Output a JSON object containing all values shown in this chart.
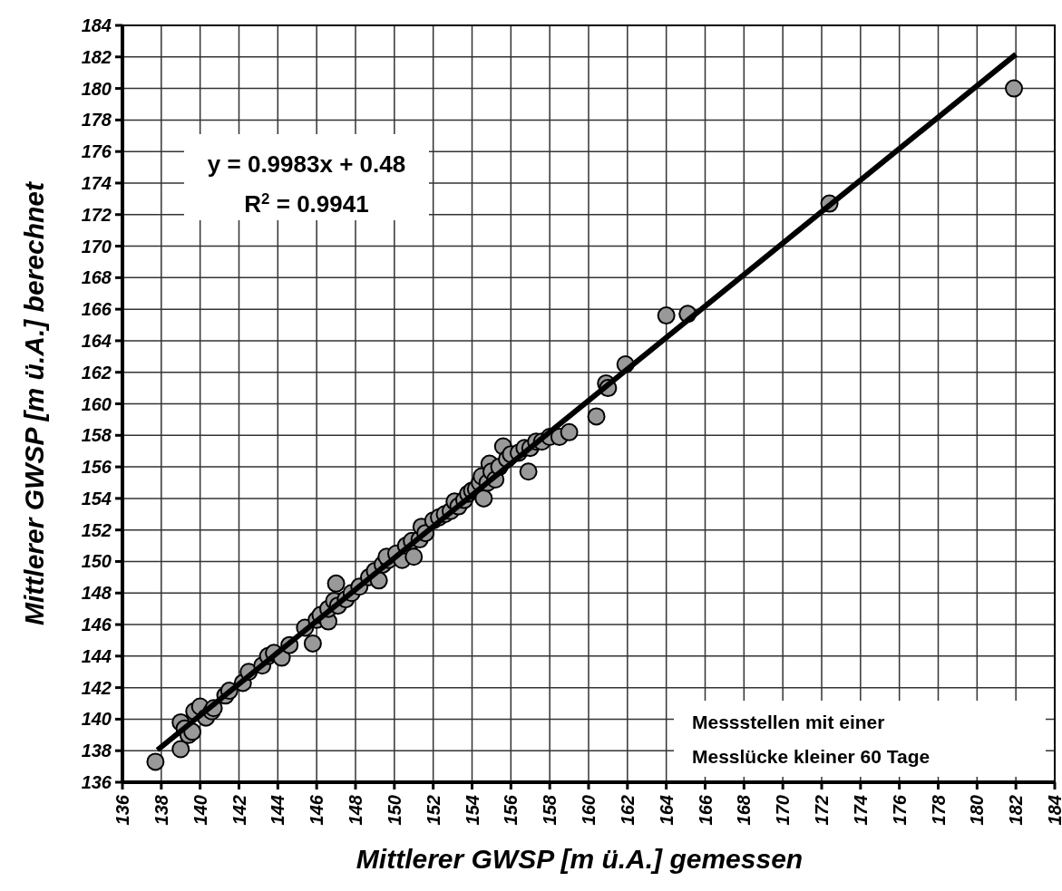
{
  "chart_data": {
    "type": "scatter",
    "xlabel": "Mittlerer GWSP [m ü.A.] gemessen",
    "ylabel": "Mittlerer GWSP [m ü.A.] berechnet",
    "xlim": [
      136,
      184
    ],
    "ylim": [
      136,
      184
    ],
    "xticks": [
      136,
      138,
      140,
      142,
      144,
      146,
      148,
      150,
      152,
      154,
      156,
      158,
      160,
      162,
      164,
      166,
      168,
      170,
      172,
      174,
      176,
      178,
      180,
      182,
      184
    ],
    "yticks": [
      136,
      138,
      140,
      142,
      144,
      146,
      148,
      150,
      152,
      154,
      156,
      158,
      160,
      162,
      164,
      166,
      168,
      170,
      172,
      174,
      176,
      178,
      180,
      182,
      184
    ],
    "grid": true,
    "annotations": [
      "y = 0.9983x + 0.48",
      "R$^{2}$ = 0.9941",
      "Messstellen mit einer",
      "Messlücke kleiner 60 Tage"
    ],
    "series": [
      {
        "color": "#999999",
        "marker": "circle",
        "x": [
          137.7,
          139.0,
          139.0,
          139.2,
          139.4,
          139.6,
          139.7,
          140.0,
          140.3,
          140.6,
          140.7,
          141.3,
          141.5,
          142.2,
          142.5,
          143.2,
          143.5,
          143.8,
          144.2,
          144.6,
          145.4,
          145.8,
          146.0,
          146.2,
          146.6,
          146.6,
          146.9,
          147.0,
          147.1,
          147.5,
          147.8,
          148.2,
          148.7,
          149.0,
          149.2,
          149.4,
          149.7,
          149.6,
          150.1,
          150.4,
          150.6,
          150.9,
          151.0,
          151.3,
          151.4,
          151.6,
          152.0,
          152.3,
          152.6,
          152.9,
          153.1,
          153.3,
          153.6,
          153.8,
          154.0,
          154.2,
          154.4,
          154.5,
          154.6,
          154.8,
          154.9,
          155.0,
          155.2,
          155.4,
          155.6,
          155.8,
          156.0,
          156.4,
          156.7,
          156.9,
          157.0,
          157.3,
          157.6,
          158.0,
          158.5,
          159.0,
          160.4,
          160.9,
          161.0,
          161.9,
          164.0,
          165.1,
          172.4,
          181.9
        ],
        "values": [
          137.3,
          138.1,
          139.8,
          139.4,
          139.0,
          139.2,
          140.5,
          140.8,
          140.1,
          140.5,
          140.7,
          141.5,
          141.8,
          142.3,
          143.0,
          143.4,
          144.0,
          144.2,
          143.9,
          144.7,
          145.8,
          144.8,
          146.3,
          146.6,
          146.2,
          147.0,
          147.5,
          148.6,
          147.2,
          147.6,
          148.0,
          148.4,
          149.0,
          149.4,
          148.8,
          149.8,
          150.1,
          150.3,
          150.5,
          150.1,
          151.0,
          151.3,
          150.3,
          151.4,
          152.2,
          151.8,
          152.6,
          152.8,
          153.0,
          153.2,
          153.8,
          153.5,
          153.9,
          154.3,
          154.5,
          154.6,
          155.0,
          155.4,
          154.0,
          155.0,
          156.2,
          155.7,
          155.2,
          156.0,
          157.3,
          156.5,
          156.8,
          156.9,
          157.2,
          155.7,
          157.2,
          157.6,
          157.6,
          157.9,
          157.9,
          158.2,
          159.2,
          161.3,
          161.0,
          162.5,
          165.6,
          165.7,
          172.7,
          180.0
        ]
      },
      {
        "type": "line",
        "color": "#000000",
        "line_style": "solid",
        "x": [
          137.8,
          182.0
        ],
        "values": [
          138.04,
          182.17
        ]
      }
    ]
  }
}
